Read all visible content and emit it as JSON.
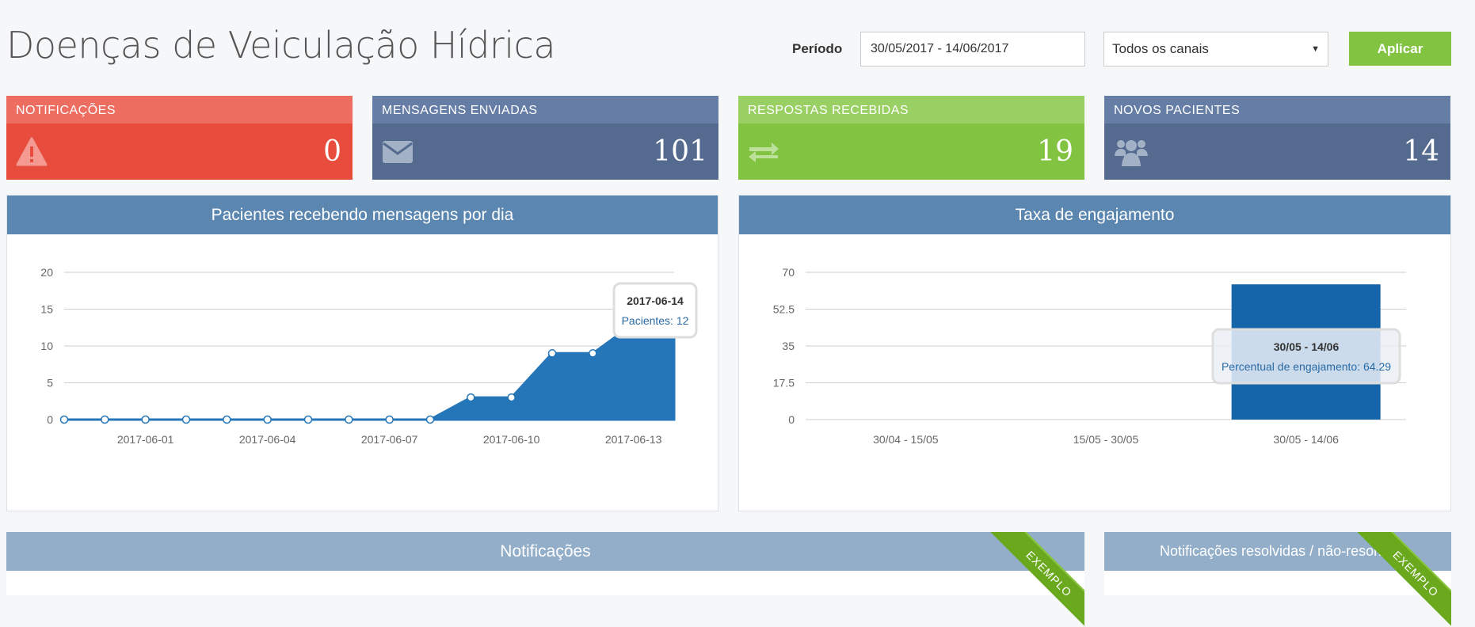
{
  "header": {
    "title": "Doenças de Veiculação Hídrica",
    "period_label": "Período",
    "date_range": "30/05/2017 - 14/06/2017",
    "channel_select": "Todos os canais",
    "apply_label": "Aplicar"
  },
  "stats": [
    {
      "label": "NOTIFICAÇÕES",
      "value": "0",
      "icon": "warning-icon",
      "color": "#e84c3d",
      "head_color": "#ed6d61"
    },
    {
      "label": "MENSAGENS ENVIADAS",
      "value": "101",
      "icon": "envelope-icon",
      "color": "#546b8f",
      "head_color": "#667ea6"
    },
    {
      "label": "RESPOSTAS RECEBIDAS",
      "value": "19",
      "icon": "exchange-icon",
      "color": "#82c341",
      "head_color": "#99cf63"
    },
    {
      "label": "NOVOS PACIENTES",
      "value": "14",
      "icon": "users-icon",
      "color": "#546b8f",
      "head_color": "#667ea6"
    }
  ],
  "panels": {
    "left_title": "Pacientes recebendo mensagens por dia",
    "right_title": "Taxa de engajamento",
    "bottom_left_title": "Notificações",
    "bottom_right_title": "Notificações resolvidas / não-resolvi",
    "ribbon_text": "EXEMPLO"
  },
  "chart_data": [
    {
      "type": "area",
      "title": "Pacientes recebendo mensagens por dia",
      "x": [
        "2017-05-30",
        "2017-05-31",
        "2017-06-01",
        "2017-06-02",
        "2017-06-03",
        "2017-06-04",
        "2017-06-05",
        "2017-06-06",
        "2017-06-07",
        "2017-06-08",
        "2017-06-09",
        "2017-06-10",
        "2017-06-11",
        "2017-06-12",
        "2017-06-13",
        "2017-06-14"
      ],
      "x_tick_labels": [
        "2017-06-01",
        "2017-06-04",
        "2017-06-07",
        "2017-06-10",
        "2017-06-13"
      ],
      "series": [
        {
          "name": "Pacientes",
          "values": [
            0,
            0,
            0,
            0,
            0,
            0,
            0,
            0,
            0,
            0,
            3,
            3,
            9,
            9,
            13,
            12
          ]
        }
      ],
      "y_ticks": [
        "0",
        "5",
        "10",
        "15",
        "20"
      ],
      "ylim": [
        0,
        20
      ],
      "color": "#2576b8",
      "tooltip": {
        "title": "2017-06-14",
        "text": "Pacientes: 12"
      }
    },
    {
      "type": "bar",
      "title": "Taxa de engajamento",
      "categories": [
        "30/04 - 15/05",
        "15/05 - 30/05",
        "30/05 - 14/06"
      ],
      "series": [
        {
          "name": "Percentual de engajamento",
          "values": [
            0,
            0,
            64.29
          ]
        }
      ],
      "y_ticks": [
        "0",
        "17.5",
        "35",
        "52.5",
        "70"
      ],
      "ylim": [
        0,
        70
      ],
      "color": "#1565ab",
      "tooltip": {
        "title": "30/05 - 14/06",
        "text": "Percentual de engajamento: 64.29"
      }
    }
  ]
}
